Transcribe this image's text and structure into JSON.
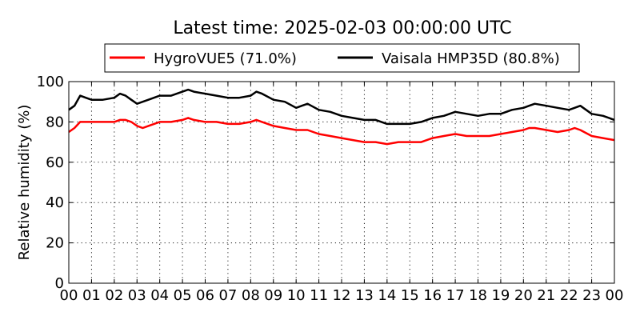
{
  "chart_data": {
    "type": "line",
    "title": "Latest time: 2025-02-03 00:00:00 UTC",
    "xlabel": "",
    "ylabel": "Relative humidity (%)",
    "ylim": [
      0,
      100
    ],
    "xlim": [
      0,
      24
    ],
    "grid": true,
    "legend_position": "top",
    "yticks": [
      "0",
      "20",
      "40",
      "60",
      "80",
      "100"
    ],
    "xticks": [
      "00",
      "01",
      "02",
      "03",
      "04",
      "05",
      "06",
      "07",
      "08",
      "09",
      "10",
      "11",
      "12",
      "13",
      "14",
      "15",
      "16",
      "17",
      "18",
      "19",
      "20",
      "21",
      "22",
      "23",
      "00"
    ],
    "series": [
      {
        "name": "HygroVUE5 (71.0%)",
        "color": "#ff0000",
        "x": [
          0.0,
          0.25,
          0.5,
          1.0,
          1.5,
          2.0,
          2.25,
          2.5,
          2.75,
          3.0,
          3.25,
          3.5,
          4.0,
          4.5,
          5.0,
          5.25,
          5.5,
          6.0,
          6.5,
          7.0,
          7.5,
          8.0,
          8.25,
          8.5,
          9.0,
          9.5,
          10.0,
          10.25,
          10.5,
          11.0,
          11.5,
          12.0,
          12.5,
          13.0,
          13.5,
          14.0,
          14.5,
          15.0,
          15.5,
          16.0,
          16.5,
          17.0,
          17.5,
          18.0,
          18.5,
          19.0,
          19.5,
          20.0,
          20.25,
          20.5,
          21.0,
          21.5,
          22.0,
          22.25,
          22.5,
          23.0,
          23.5,
          24.0
        ],
        "values": [
          75,
          77,
          80,
          80,
          80,
          80,
          81,
          81,
          80,
          78,
          77,
          78,
          80,
          80,
          81,
          82,
          81,
          80,
          80,
          79,
          79,
          80,
          81,
          80,
          78,
          77,
          76,
          76,
          76,
          74,
          73,
          72,
          71,
          70,
          70,
          69,
          70,
          70,
          70,
          72,
          73,
          74,
          73,
          73,
          73,
          74,
          75,
          76,
          77,
          77,
          76,
          75,
          76,
          77,
          76,
          73,
          72,
          71
        ]
      },
      {
        "name": "Vaisala HMP35D (80.8%)",
        "color": "#000000",
        "x": [
          0.0,
          0.25,
          0.5,
          0.75,
          1.0,
          1.25,
          1.5,
          2.0,
          2.25,
          2.5,
          2.75,
          3.0,
          3.25,
          3.5,
          4.0,
          4.5,
          5.0,
          5.25,
          5.5,
          6.0,
          6.5,
          7.0,
          7.5,
          8.0,
          8.25,
          8.5,
          9.0,
          9.5,
          10.0,
          10.25,
          10.5,
          11.0,
          11.5,
          12.0,
          12.5,
          13.0,
          13.5,
          14.0,
          14.5,
          15.0,
          15.5,
          16.0,
          16.5,
          17.0,
          17.5,
          18.0,
          18.5,
          19.0,
          19.5,
          20.0,
          20.25,
          20.5,
          21.0,
          21.5,
          22.0,
          22.25,
          22.5,
          23.0,
          23.5,
          24.0
        ],
        "values": [
          86,
          88,
          93,
          92,
          91,
          91,
          91,
          92,
          94,
          93,
          91,
          89,
          90,
          91,
          93,
          93,
          95,
          96,
          95,
          94,
          93,
          92,
          92,
          93,
          95,
          94,
          91,
          90,
          87,
          88,
          89,
          86,
          85,
          83,
          82,
          81,
          81,
          79,
          79,
          79,
          80,
          82,
          83,
          85,
          84,
          83,
          84,
          84,
          86,
          87,
          88,
          89,
          88,
          87,
          86,
          87,
          88,
          84,
          83,
          81
        ]
      }
    ]
  }
}
